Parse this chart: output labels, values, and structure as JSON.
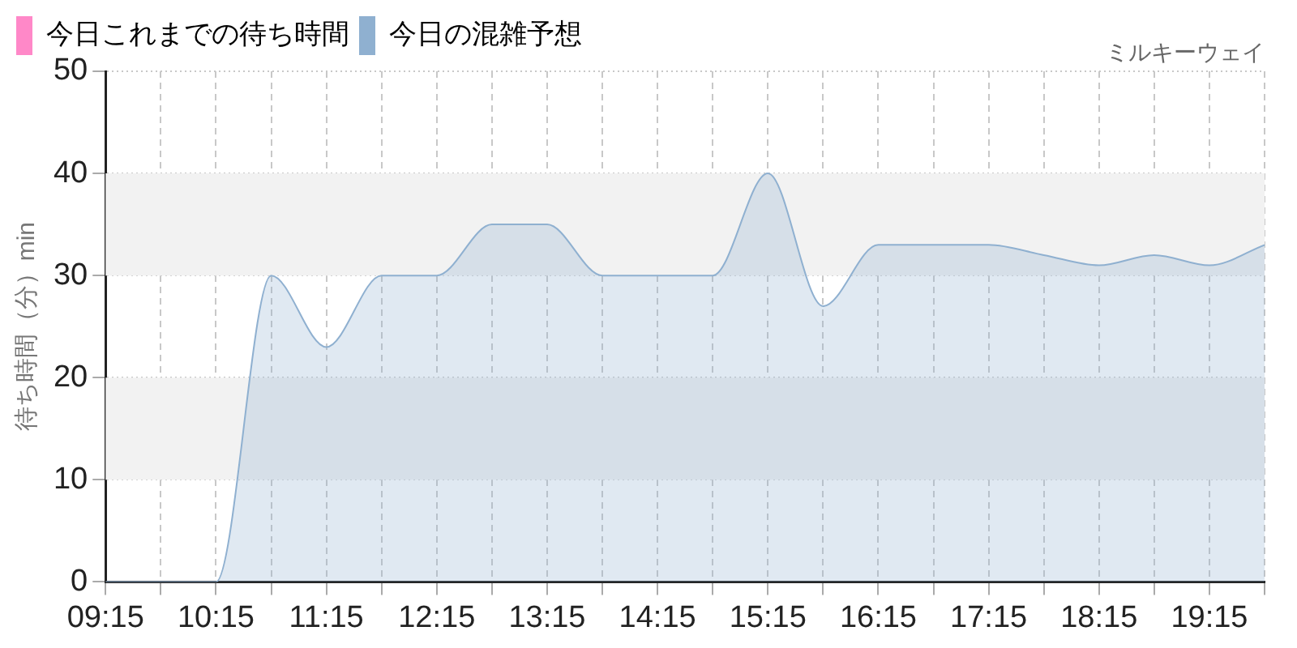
{
  "chart_data": {
    "type": "area",
    "subtitle": "ミルキーウェイ",
    "ylabel": "待ち時間（分）min",
    "x": [
      9.25,
      9.75,
      10.25,
      10.75,
      11.25,
      11.75,
      12.25,
      12.75,
      13.25,
      13.75,
      14.25,
      14.75,
      15.25,
      15.75,
      16.25,
      16.75,
      17.25,
      17.75,
      18.25,
      18.75,
      19.25,
      19.75
    ],
    "series": [
      {
        "name": "今日これまでの待ち時間",
        "color": "#ff88c8",
        "values": [
          null,
          null,
          null,
          null,
          null,
          null,
          null,
          null,
          null,
          null,
          null,
          null,
          null,
          null,
          null,
          null,
          null,
          null,
          null,
          null,
          null,
          null
        ]
      },
      {
        "name": "今日の混雑予想",
        "color": "#8fb0d0",
        "values": [
          0,
          0,
          0,
          30,
          23,
          30,
          30,
          35,
          35,
          30,
          30,
          30,
          40,
          27,
          33,
          33,
          33,
          32,
          31,
          32,
          31,
          33
        ]
      }
    ],
    "xlim": [
      9.25,
      19.75
    ],
    "xticks": [
      {
        "value": 9.25,
        "label": "09:15"
      },
      {
        "value": 9.75,
        "label": null
      },
      {
        "value": 10.25,
        "label": "10:15"
      },
      {
        "value": 10.75,
        "label": null
      },
      {
        "value": 11.25,
        "label": "11:15"
      },
      {
        "value": 11.75,
        "label": null
      },
      {
        "value": 12.25,
        "label": "12:15"
      },
      {
        "value": 12.75,
        "label": null
      },
      {
        "value": 13.25,
        "label": "13:15"
      },
      {
        "value": 13.75,
        "label": null
      },
      {
        "value": 14.25,
        "label": "14:15"
      },
      {
        "value": 14.75,
        "label": null
      },
      {
        "value": 15.25,
        "label": "15:15"
      },
      {
        "value": 15.75,
        "label": null
      },
      {
        "value": 16.25,
        "label": "16:15"
      },
      {
        "value": 16.75,
        "label": null
      },
      {
        "value": 17.25,
        "label": "17:15"
      },
      {
        "value": 17.75,
        "label": null
      },
      {
        "value": 18.25,
        "label": "18:15"
      },
      {
        "value": 18.75,
        "label": null
      },
      {
        "value": 19.25,
        "label": "19:15"
      },
      {
        "value": 19.75,
        "label": null
      }
    ],
    "ylim": [
      0,
      50
    ],
    "yticks": [
      0,
      10,
      20,
      30,
      40,
      50
    ],
    "bands": [
      {
        "axis": "y",
        "from": 10,
        "to": 20,
        "color": "#f2f2f2"
      },
      {
        "axis": "y",
        "from": 30,
        "to": 40,
        "color": "#f2f2f2"
      }
    ],
    "grid": true,
    "legend": "top left",
    "marker": "none"
  }
}
